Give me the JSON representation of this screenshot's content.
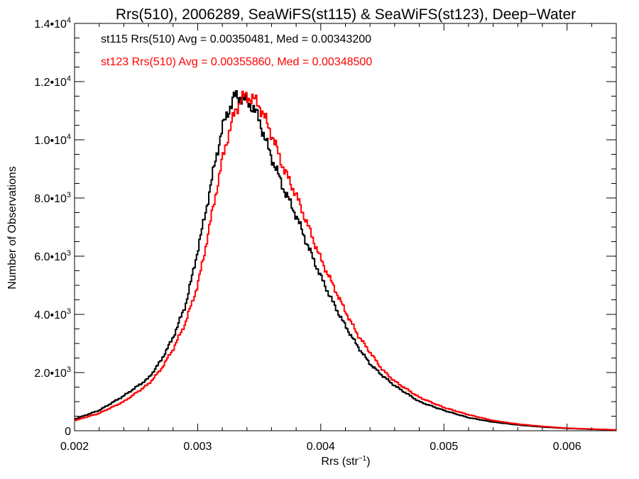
{
  "chart_data": {
    "type": "line",
    "title": "Rrs(510), 2006289, SeaWiFS(st115) & SeaWiFS(st123), Deep−Water",
    "xlabel": "Rrs (str",
    "xlabel_sup": "−1",
    "xlabel_end": ")",
    "ylabel": "Number of Observations",
    "xlim": [
      0.002,
      0.0064
    ],
    "ylim": [
      0,
      14000
    ],
    "xticks": [
      {
        "value": 0.002,
        "label": "0.002"
      },
      {
        "value": 0.003,
        "label": "0.003"
      },
      {
        "value": 0.004,
        "label": "0.004"
      },
      {
        "value": 0.005,
        "label": "0.005"
      },
      {
        "value": 0.006,
        "label": "0.006"
      }
    ],
    "yticks": [
      {
        "value": 0,
        "mant": "0",
        "exp": ""
      },
      {
        "value": 2000,
        "mant": "2.0•10",
        "exp": "3"
      },
      {
        "value": 4000,
        "mant": "4.0•10",
        "exp": "3"
      },
      {
        "value": 6000,
        "mant": "6.0•10",
        "exp": "3"
      },
      {
        "value": 8000,
        "mant": "8.0•10",
        "exp": "3"
      },
      {
        "value": 10000,
        "mant": "1.0•10",
        "exp": "4"
      },
      {
        "value": 12000,
        "mant": "1.2•10",
        "exp": "4"
      },
      {
        "value": 14000,
        "mant": "1.4•10",
        "exp": "4"
      }
    ],
    "annotations": [
      {
        "text": "st115 Rrs(510) Avg = 0.00350481, Med = 0.00343200",
        "color": "#000000"
      },
      {
        "text": "st123 Rrs(510) Avg = 0.00355860, Med = 0.00348500",
        "color": "#ff0000"
      }
    ],
    "series": [
      {
        "color": "#000000",
        "x": [
          0.002,
          0.0022,
          0.0024,
          0.0026,
          0.0027,
          0.0028,
          0.0029,
          0.00295,
          0.003,
          0.00305,
          0.0031,
          0.00315,
          0.0032,
          0.00325,
          0.0033,
          0.00335,
          0.0034,
          0.00345,
          0.0035,
          0.00355,
          0.0036,
          0.0037,
          0.0038,
          0.0039,
          0.004,
          0.0041,
          0.0042,
          0.0043,
          0.0044,
          0.0045,
          0.0046,
          0.0048,
          0.005,
          0.0052,
          0.0054,
          0.0056,
          0.0058,
          0.006,
          0.0062,
          0.0064
        ],
        "y": [
          400,
          700,
          1200,
          1800,
          2400,
          3200,
          4300,
          5200,
          6200,
          7200,
          8300,
          9400,
          10400,
          11000,
          11500,
          11450,
          11350,
          11100,
          10700,
          10000,
          9400,
          8300,
          7400,
          6300,
          5300,
          4400,
          3600,
          2900,
          2300,
          1900,
          1550,
          1000,
          700,
          450,
          300,
          200,
          130,
          80,
          50,
          30
        ]
      },
      {
        "color": "#ff0000",
        "x": [
          0.002,
          0.0022,
          0.0024,
          0.0026,
          0.0027,
          0.0028,
          0.0029,
          0.003,
          0.00305,
          0.0031,
          0.00315,
          0.0032,
          0.00325,
          0.0033,
          0.00335,
          0.0034,
          0.00345,
          0.0035,
          0.00355,
          0.0036,
          0.0037,
          0.0038,
          0.0039,
          0.004,
          0.0041,
          0.0042,
          0.0043,
          0.0044,
          0.0045,
          0.0046,
          0.0048,
          0.005,
          0.0052,
          0.0054,
          0.0056,
          0.0058,
          0.006,
          0.0062,
          0.0064
        ],
        "y": [
          350,
          600,
          1000,
          1600,
          2100,
          2800,
          3700,
          5000,
          6000,
          7100,
          8200,
          9300,
          10200,
          10900,
          11400,
          11500,
          11400,
          11200,
          10700,
          10200,
          9000,
          8100,
          7000,
          5900,
          5000,
          4100,
          3300,
          2700,
          2100,
          1700,
          1150,
          800,
          550,
          350,
          230,
          150,
          90,
          60,
          30
        ]
      }
    ]
  }
}
